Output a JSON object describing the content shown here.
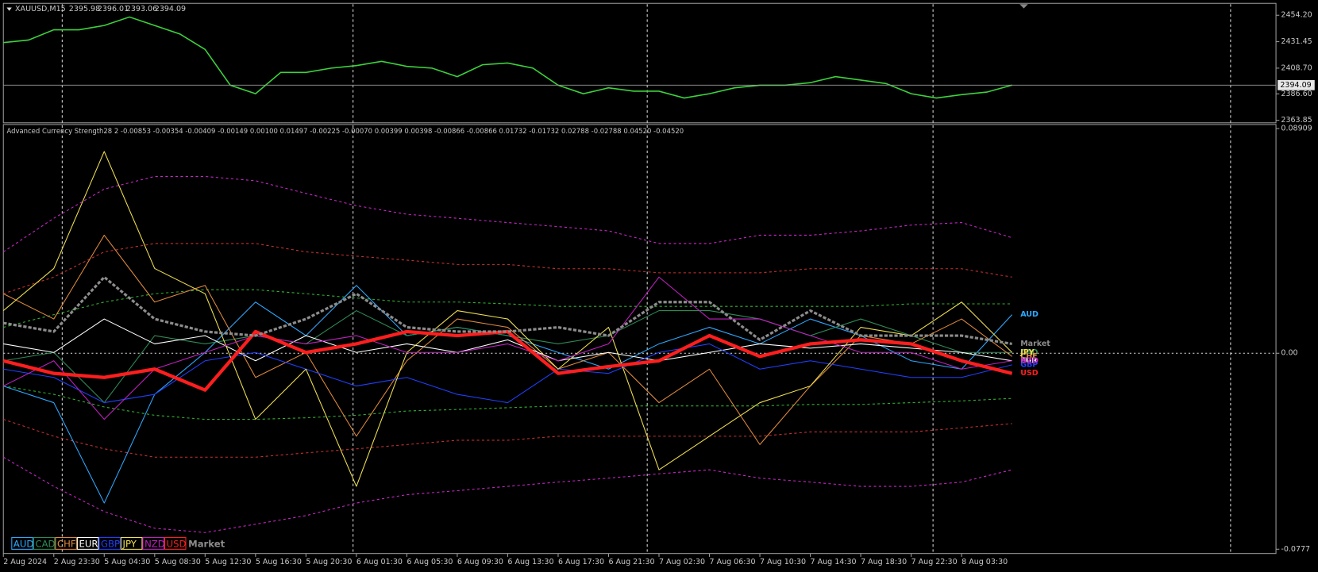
{
  "chart_data": [
    {
      "type": "line",
      "title": "XAUUSD,M15",
      "ohlc": [
        2395.98,
        2396.01,
        2393.06,
        2394.09
      ],
      "values": [
        2430.7,
        2432.9,
        2441.7,
        2441.7,
        2445.4,
        2452.7,
        2445.4,
        2438.1,
        2424.8,
        2394.0,
        2386.7,
        2405.0,
        2405.0,
        2408.7,
        2410.9,
        2414.6,
        2410.2,
        2408.7,
        2401.4,
        2411.6,
        2413.1,
        2408.7,
        2394.0,
        2386.7,
        2391.8,
        2388.9,
        2388.9,
        2383.0,
        2386.7,
        2391.8,
        2394.0,
        2394.0,
        2396.2,
        2401.4,
        2398.4,
        2395.5,
        2386.7,
        2383.0,
        2385.9,
        2388.1,
        2394.09
      ],
      "color": "#3cd23c",
      "ylim": [
        2362.4,
        2463.7
      ],
      "yticks": [
        {
          "value": 2454.2,
          "label": "2454.20"
        },
        {
          "value": 2431.45,
          "label": "2431.45"
        },
        {
          "value": 2408.7,
          "label": "2408.70"
        },
        {
          "value": 2386.6,
          "label": "2386.60"
        },
        {
          "value": 2363.85,
          "label": "2363.85"
        }
      ]
    },
    {
      "type": "line",
      "title": "Advanced Currency Strength28 2 -0.00853 -0.00354 -0.00409 -0.00149 0.00100 0.01497 -0.00225 -0.00070 0.00399 0.00398 -0.00866 -0.00866 0.01732 -0.01732 0.02788 -0.02788 0.04520 -0.04520",
      "categories": [
        "2 Aug 2024",
        "2 Aug 23:30",
        "5 Aug 04:30",
        "5 Aug 08:30",
        "5 Aug 12:30",
        "5 Aug 16:30",
        "5 Aug 20:30",
        "6 Aug 01:30",
        "6 Aug 05:30",
        "6 Aug 09:30",
        "6 Aug 13:30",
        "6 Aug 17:30",
        "6 Aug 21:30",
        "7 Aug 02:30",
        "7 Aug 06:30",
        "7 Aug 10:30",
        "7 Aug 14:30",
        "7 Aug 18:30",
        "7 Aug 22:30",
        "8 Aug 03:30",
        null
      ],
      "ylim": [
        -0.0794,
        0.0907
      ],
      "yticks": [
        0.08909,
        {
          "value": 0,
          "label": "0.00"
        },
        -0.0777
      ],
      "zero_line": true,
      "bands": [
        {
          "color": "#c828c8",
          "values": [
            0.0402,
            0.0535,
            0.0651,
            0.0701,
            0.0701,
            0.0684,
            0.0634,
            0.0585,
            0.0551,
            0.0535,
            0.0518,
            0.0502,
            0.0485,
            0.0435,
            0.0435,
            0.0468,
            0.0468,
            0.0485,
            0.0508,
            0.0518,
            0.0458
          ]
        },
        {
          "color": "#c828c8",
          "values": [
            -0.0412,
            -0.0528,
            -0.0628,
            -0.0694,
            -0.0711,
            -0.0678,
            -0.0644,
            -0.0594,
            -0.0561,
            -0.0545,
            -0.0528,
            -0.0511,
            -0.0495,
            -0.0478,
            -0.0462,
            -0.0495,
            -0.0511,
            -0.0528,
            -0.0528,
            -0.0511,
            -0.0462
          ]
        },
        {
          "color": "#c83232",
          "values": [
            0.0236,
            0.0302,
            0.0402,
            0.0435,
            0.0435,
            0.0435,
            0.0402,
            0.0385,
            0.0369,
            0.0352,
            0.0352,
            0.0335,
            0.0335,
            0.0319,
            0.0319,
            0.0319,
            0.0335,
            0.0335,
            0.0335,
            0.0335,
            0.0302
          ]
        },
        {
          "color": "#c83232",
          "values": [
            -0.0262,
            -0.0329,
            -0.0379,
            -0.0412,
            -0.0412,
            -0.0412,
            -0.0395,
            -0.0379,
            -0.0362,
            -0.0345,
            -0.0345,
            -0.0329,
            -0.0329,
            -0.0329,
            -0.0329,
            -0.0329,
            -0.0312,
            -0.0312,
            -0.0312,
            -0.0296,
            -0.0279
          ]
        },
        {
          "color": "#32b432",
          "values": [
            0.0103,
            0.0153,
            0.0203,
            0.0236,
            0.0252,
            0.0252,
            0.0236,
            0.0219,
            0.0203,
            0.0203,
            0.0196,
            0.0186,
            0.0186,
            0.0186,
            0.0186,
            0.0186,
            0.0186,
            0.0186,
            0.0196,
            0.0196,
            0.0196
          ]
        },
        {
          "color": "#32b432",
          "values": [
            -0.013,
            -0.0163,
            -0.0213,
            -0.0246,
            -0.0262,
            -0.0262,
            -0.0256,
            -0.0246,
            -0.0229,
            -0.0223,
            -0.0216,
            -0.0209,
            -0.0209,
            -0.0209,
            -0.0209,
            -0.0209,
            -0.0203,
            -0.0203,
            -0.0196,
            -0.0189,
            -0.0179
          ]
        }
      ],
      "series": [
        {
          "name": "AUD",
          "color": "#2ea8ff",
          "width": 1,
          "values": [
            -0.013,
            -0.0196,
            -0.0594,
            -0.0163,
            0.0003,
            0.0203,
            0.007,
            0.0269,
            0.007,
            0.0103,
            0.007,
            0.0003,
            -0.0063,
            0.0037,
            0.0103,
            0.0037,
            0.0136,
            0.007,
            -0.003,
            -0.0063,
            0.0153
          ]
        },
        {
          "name": "CAD",
          "color": "#2e8b57",
          "width": 1,
          "values": [
            -0.003,
            0.0003,
            -0.0196,
            0.007,
            0.0037,
            0.007,
            0.0037,
            0.0169,
            0.007,
            0.0103,
            0.007,
            0.0037,
            0.007,
            0.0169,
            0.0169,
            0.0136,
            0.007,
            0.0136,
            0.007,
            0.0003,
            0.0003
          ]
        },
        {
          "name": "CHF",
          "color": "#e08a3c",
          "width": 1,
          "values": [
            0.0236,
            0.0136,
            0.0468,
            0.0203,
            0.0269,
            -0.0096,
            0.0003,
            -0.0329,
            -0.003,
            0.0136,
            0.0103,
            -0.0063,
            0.0003,
            -0.0196,
            -0.0063,
            -0.0362,
            -0.013,
            0.007,
            0.0037,
            0.0136,
            -0.0013
          ]
        },
        {
          "name": "EUR",
          "color": "#ffffff",
          "width": 1,
          "values": [
            0.0037,
            0.0003,
            0.0136,
            0.0037,
            0.007,
            -0.003,
            0.007,
            0.0003,
            0.0037,
            0.0003,
            0.0053,
            -0.003,
            0.0003,
            -0.003,
            0.0003,
            0.0037,
            0.002,
            0.0037,
            0.002,
            0.0003,
            -0.003
          ]
        },
        {
          "name": "GBP",
          "color": "#2040ff",
          "width": 1,
          "values": [
            -0.0063,
            -0.0096,
            -0.0196,
            -0.0163,
            -0.003,
            0.0003,
            -0.0063,
            -0.013,
            -0.0096,
            -0.0163,
            -0.0196,
            -0.0063,
            -0.008,
            0.0003,
            0.0037,
            -0.0063,
            -0.003,
            -0.0063,
            -0.0096,
            -0.0096,
            -0.0046
          ]
        },
        {
          "name": "JPY",
          "color": "#f0e050",
          "width": 1,
          "values": [
            0.0169,
            0.0336,
            0.08,
            0.0336,
            0.0236,
            -0.0262,
            -0.0063,
            -0.0528,
            0.0003,
            0.0169,
            0.0136,
            -0.0063,
            0.0103,
            -0.0462,
            -0.0329,
            -0.0196,
            -0.013,
            0.0103,
            0.007,
            0.0203,
            0.0003
          ]
        },
        {
          "name": "NZD",
          "color": "#c020c0",
          "width": 1,
          "values": [
            -0.013,
            -0.003,
            -0.0262,
            -0.0063,
            0.0003,
            0.007,
            0.0037,
            0.007,
            0.0003,
            0.0003,
            0.0037,
            -0.003,
            0.0037,
            0.0302,
            0.0136,
            0.0136,
            0.007,
            0.0003,
            0.0003,
            -0.0063,
            -0.003
          ]
        },
        {
          "name": "USD",
          "color": "#ff1e1e",
          "width": 4,
          "values": [
            -0.003,
            -0.008,
            -0.0096,
            -0.0063,
            -0.0146,
            0.0086,
            0.0003,
            0.0037,
            0.0086,
            0.007,
            0.0086,
            -0.008,
            -0.0053,
            -0.003,
            0.007,
            -0.0013,
            0.0037,
            0.0053,
            0.0037,
            -0.003,
            -0.008
          ]
        },
        {
          "name": "Market",
          "color": "#8c8c8c",
          "width": 3,
          "values": [
            0.012,
            0.0086,
            0.0302,
            0.0136,
            0.0086,
            0.007,
            0.0136,
            0.0236,
            0.0103,
            0.0086,
            0.0086,
            0.0103,
            0.007,
            0.0203,
            0.0203,
            0.0053,
            0.0169,
            0.007,
            0.007,
            0.007,
            0.0037
          ]
        }
      ]
    }
  ]
}
